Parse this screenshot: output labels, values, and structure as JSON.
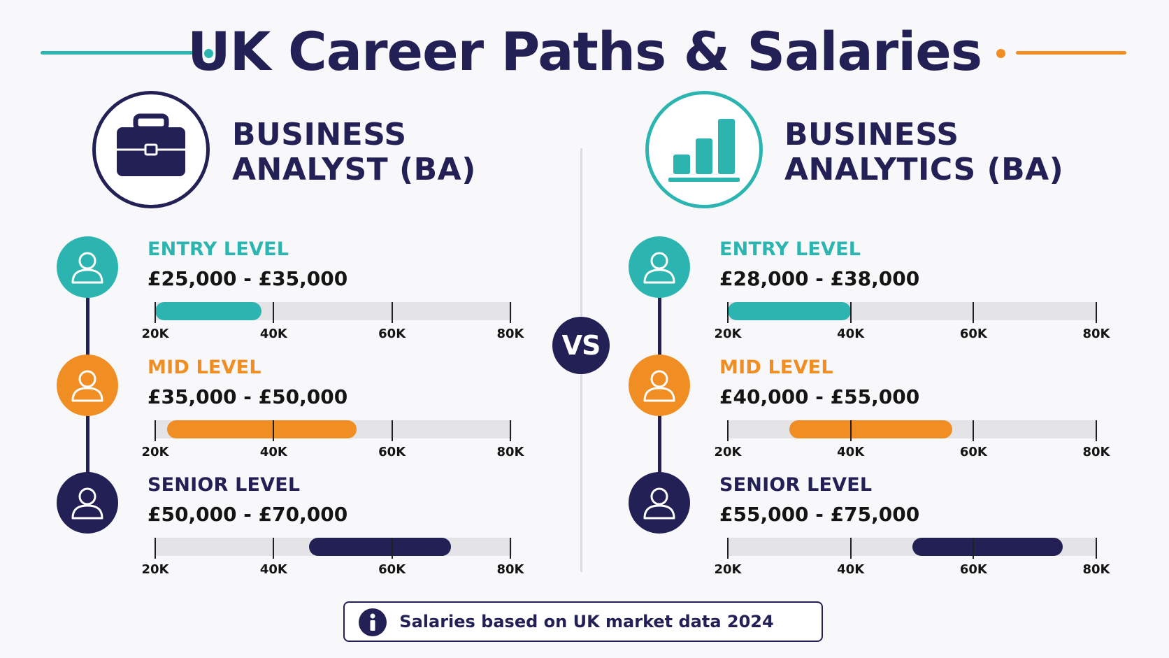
{
  "title": "UK Career Paths & Salaries",
  "colors": {
    "navy": "#232056",
    "teal": "#2cb5b0",
    "orange": "#f08e23",
    "track": "#e4e4e7"
  },
  "vs_label": "VS",
  "footer_note": {
    "icon": "info-icon",
    "text": "Salaries based on UK market data 2024"
  },
  "chart_data": [
    {
      "type": "bar",
      "title_lines": [
        "BUSINESS",
        "ANALYST (BA)"
      ],
      "icon": "briefcase-icon",
      "x_ticks": [
        "20K",
        "40K",
        "60K",
        "80K"
      ],
      "x_range": [
        20000,
        80000
      ],
      "levels": [
        {
          "label": "ENTRY LEVEL",
          "range_text": "£25,000 - £35,000",
          "min": 20000,
          "max": 38000,
          "color": "#2cb5b0"
        },
        {
          "label": "MID LEVEL",
          "range_text": "£35,000 - £50,000",
          "min": 22000,
          "max": 54000,
          "color": "#f08e23"
        },
        {
          "label": "SENIOR LEVEL",
          "range_text": "£50,000 - £70,000",
          "min": 46000,
          "max": 70000,
          "color": "#232056"
        }
      ]
    },
    {
      "type": "bar",
      "title_lines": [
        "BUSINESS",
        "ANALYTICS (BA)"
      ],
      "icon": "bar-chart-icon",
      "x_ticks": [
        "20K",
        "40K",
        "60K",
        "80K"
      ],
      "x_range": [
        20000,
        80000
      ],
      "levels": [
        {
          "label": "ENTRY LEVEL",
          "range_text": "£28,000 - £38,000",
          "min": 20000,
          "max": 40000,
          "color": "#2cb5b0"
        },
        {
          "label": "MID LEVEL",
          "range_text": "£40,000 - £55,000",
          "min": 30000,
          "max": 56500,
          "color": "#f08e23"
        },
        {
          "label": "SENIOR LEVEL",
          "range_text": "£55,000 - £75,000",
          "min": 50000,
          "max": 74500,
          "color": "#232056"
        }
      ]
    }
  ]
}
